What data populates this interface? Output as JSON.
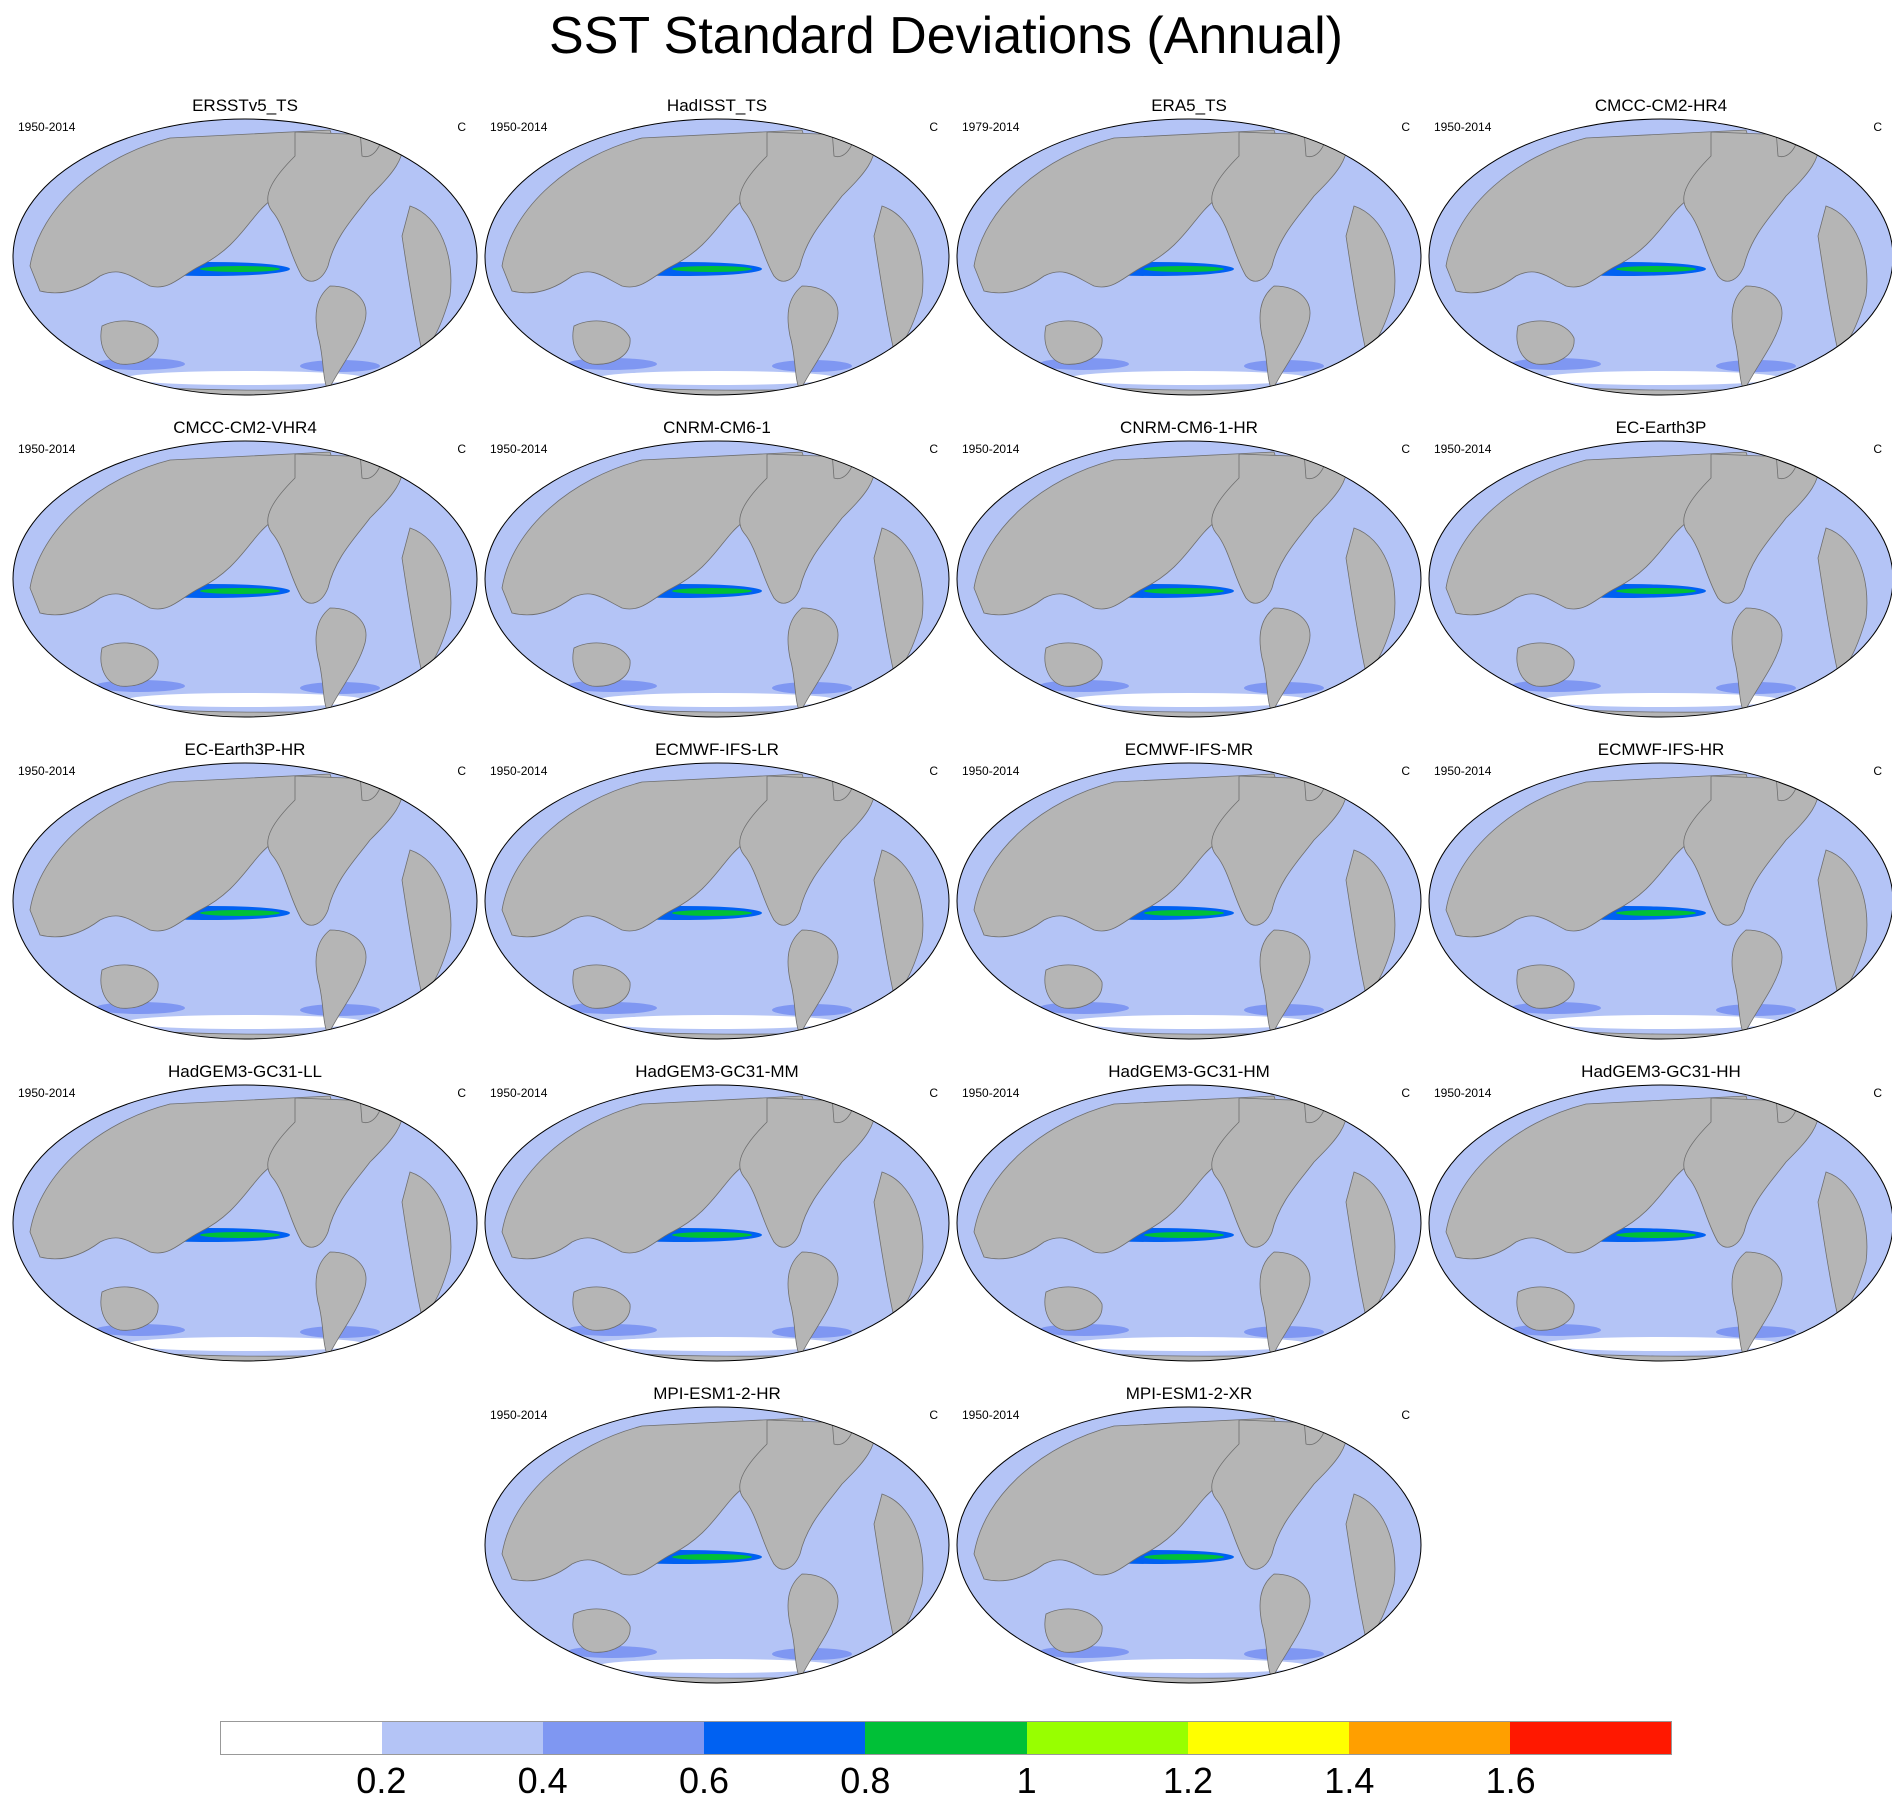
{
  "figure": {
    "title": "SST Standard Deviations (Annual)"
  },
  "units": "C",
  "panels": [
    {
      "title": "ERSSTv5_TS",
      "period": "1950-2014"
    },
    {
      "title": "HadISST_TS",
      "period": "1950-2014"
    },
    {
      "title": "ERA5_TS",
      "period": "1979-2014"
    },
    {
      "title": "CMCC-CM2-HR4",
      "period": "1950-2014"
    },
    {
      "title": "CMCC-CM2-VHR4",
      "period": "1950-2014"
    },
    {
      "title": "CNRM-CM6-1",
      "period": "1950-2014"
    },
    {
      "title": "CNRM-CM6-1-HR",
      "period": "1950-2014"
    },
    {
      "title": "EC-Earth3P",
      "period": "1950-2014"
    },
    {
      "title": "EC-Earth3P-HR",
      "period": "1950-2014"
    },
    {
      "title": "ECMWF-IFS-LR",
      "period": "1950-2014"
    },
    {
      "title": "ECMWF-IFS-MR",
      "period": "1950-2014"
    },
    {
      "title": "ECMWF-IFS-HR",
      "period": "1950-2014"
    },
    {
      "title": "HadGEM3-GC31-LL",
      "period": "1950-2014"
    },
    {
      "title": "HadGEM3-GC31-MM",
      "period": "1950-2014"
    },
    {
      "title": "HadGEM3-GC31-HM",
      "period": "1950-2014"
    },
    {
      "title": "HadGEM3-GC31-HH",
      "period": "1950-2014"
    },
    {
      "title": "MPI-ESM1-2-HR",
      "period": "1950-2014"
    },
    {
      "title": "MPI-ESM1-2-XR",
      "period": "1950-2014"
    }
  ],
  "colorbar": {
    "colors": [
      "#ffffff",
      "#b4c4f6",
      "#7f97f2",
      "#0061f2",
      "#00c037",
      "#98ff00",
      "#ffff00",
      "#ff9f00",
      "#ff1800"
    ],
    "labels": [
      "0.2",
      "0.4",
      "0.6",
      "0.8",
      "1",
      "1.2",
      "1.4",
      "1.6"
    ]
  },
  "map_colors": {
    "land": "#b5b5b5",
    "ocean_background": "#b4c4f6"
  }
}
